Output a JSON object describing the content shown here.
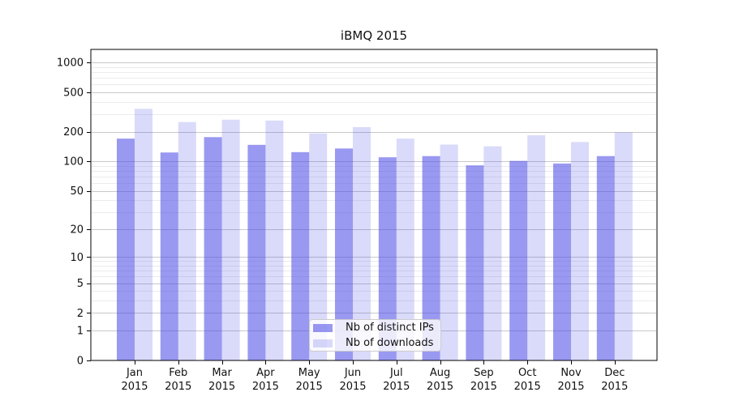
{
  "chart_data": {
    "type": "bar",
    "title": "iBMQ 2015",
    "categories": [
      "Jan 2015",
      "Feb 2015",
      "Mar 2015",
      "Apr 2015",
      "May 2015",
      "Jun 2015",
      "Jul 2015",
      "Aug 2015",
      "Sep 2015",
      "Oct 2015",
      "Nov 2015",
      "Dec 2015"
    ],
    "x_tick_lines": [
      [
        "Jan",
        "2015"
      ],
      [
        "Feb",
        "2015"
      ],
      [
        "Mar",
        "2015"
      ],
      [
        "Apr",
        "2015"
      ],
      [
        "May",
        "2015"
      ],
      [
        "Jun",
        "2015"
      ],
      [
        "Jul",
        "2015"
      ],
      [
        "Aug",
        "2015"
      ],
      [
        "Sep",
        "2015"
      ],
      [
        "Oct",
        "2015"
      ],
      [
        "Nov",
        "2015"
      ],
      [
        "Dec",
        "2015"
      ]
    ],
    "series": [
      {
        "name": "Nb of distinct IPs",
        "values": [
          170,
          123,
          176,
          147,
          124,
          135,
          110,
          113,
          91,
          101,
          95,
          113
        ]
      },
      {
        "name": "Nb of downloads",
        "values": [
          340,
          250,
          264,
          259,
          192,
          222,
          170,
          148,
          142,
          184,
          157,
          197
        ]
      }
    ],
    "xlabel": "",
    "ylabel": "",
    "yscale": "log1p",
    "ylim": [
      0,
      1350
    ],
    "yticks": [
      0,
      1,
      2,
      5,
      10,
      20,
      50,
      100,
      200,
      500,
      1000
    ],
    "minor_gridlines": [
      3,
      4,
      6,
      7,
      8,
      9,
      30,
      40,
      60,
      70,
      80,
      90,
      300,
      400,
      600,
      700,
      800,
      900
    ],
    "grid": true,
    "legend_position": "inside-bottom-center",
    "colors": {
      "ips_fill": "rgba(70,70,230,0.55)",
      "downloads_fill": "rgba(70,70,230,0.2)",
      "grid_major": "#c9c9c9",
      "grid_minor": "#ebebeb",
      "axis": "#000000",
      "text": "#111111",
      "legend_border": "#cccccc",
      "legend_bg": "rgba(255,255,255,0.8)"
    }
  }
}
